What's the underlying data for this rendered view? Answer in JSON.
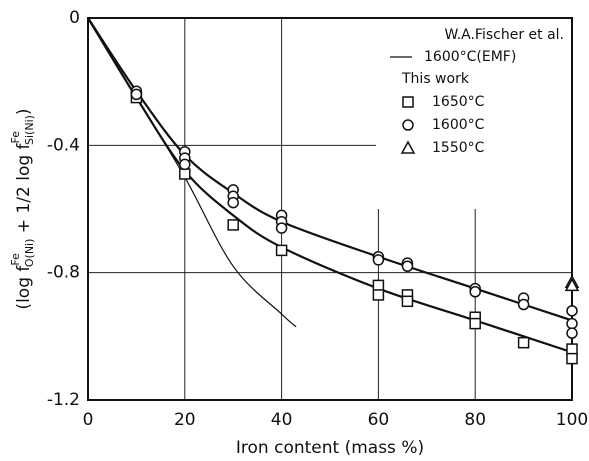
{
  "chart_data": {
    "type": "scatter",
    "x_label": "Iron content (mass %)",
    "y_label": [
      "(log f",
      "Fe",
      "O(Ni)",
      " + 1/2 log f",
      "Fe",
      "Si(Ni)",
      ")"
    ],
    "xlim": [
      0,
      100
    ],
    "xticks": [
      0,
      20,
      40,
      60,
      80,
      100
    ],
    "ylim": [
      -1.2,
      0
    ],
    "yticks": [
      0,
      -0.4,
      -0.8,
      -1.2
    ],
    "grid": true,
    "legend": "upper right",
    "legend_groups": [
      "W.A.Fischer et al.",
      "This work"
    ],
    "series": [
      {
        "name": "1600°C(EMF)",
        "marker": "line",
        "color": "#111111",
        "x": [
          0,
          10,
          20,
          30,
          40,
          43
        ],
        "values": [
          0,
          -0.25,
          -0.5,
          -0.78,
          -0.93,
          -0.97
        ]
      },
      {
        "name": "1650°C",
        "marker": "square",
        "color": "#111111",
        "x": [
          10,
          20,
          30,
          40,
          60,
          60,
          66,
          66,
          80,
          80,
          90,
          100,
          100
        ],
        "values": [
          -0.25,
          -0.49,
          -0.65,
          -0.73,
          -0.84,
          -0.87,
          -0.87,
          -0.89,
          -0.94,
          -0.96,
          -1.02,
          -1.04,
          -1.07
        ]
      },
      {
        "name": "1600°C",
        "marker": "circle",
        "color": "#111111",
        "x": [
          10,
          10,
          20,
          20,
          20,
          30,
          30,
          30,
          40,
          40,
          40,
          60,
          60,
          66,
          66,
          80,
          80,
          90,
          90,
          100,
          100,
          100
        ],
        "values": [
          -0.23,
          -0.24,
          -0.42,
          -0.44,
          -0.46,
          -0.54,
          -0.56,
          -0.58,
          -0.62,
          -0.64,
          -0.66,
          -0.75,
          -0.76,
          -0.77,
          -0.78,
          -0.85,
          -0.86,
          -0.88,
          -0.9,
          -0.92,
          -0.96,
          -0.99
        ]
      },
      {
        "name": "1550°C",
        "marker": "triangle",
        "color": "#111111",
        "x": [
          100,
          100
        ],
        "values": [
          -0.83,
          -0.84
        ]
      }
    ],
    "curves": [
      {
        "x": [
          0,
          10,
          20,
          30,
          40,
          60,
          80,
          100
        ],
        "values": [
          0,
          -0.23,
          -0.43,
          -0.55,
          -0.64,
          -0.75,
          -0.85,
          -0.95
        ]
      },
      {
        "x": [
          0,
          10,
          20,
          30,
          40,
          60,
          80,
          100
        ],
        "values": [
          0,
          -0.25,
          -0.48,
          -0.62,
          -0.72,
          -0.85,
          -0.95,
          -1.05
        ]
      }
    ]
  }
}
